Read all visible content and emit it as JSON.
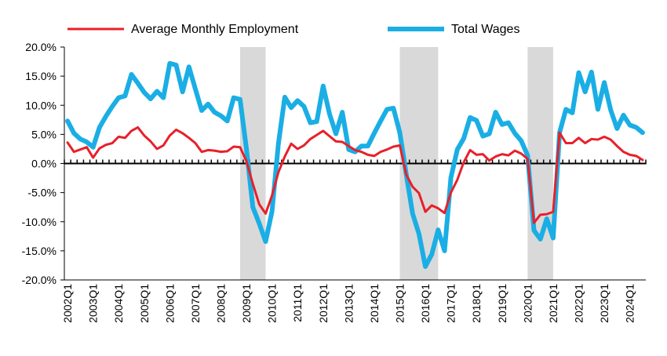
{
  "chart_data": {
    "type": "line",
    "title": "",
    "xlabel": "",
    "ylabel": "",
    "ylim": [
      -20,
      20
    ],
    "yticks": [
      20,
      15,
      10,
      5,
      0,
      -5,
      -10,
      -15,
      -20
    ],
    "ytick_labels": [
      "20.0%",
      "15.0%",
      "10.0%",
      "5.0%",
      "0.0%",
      "-5.0%",
      "-10.0%",
      "-15.0%",
      "-20.0%"
    ],
    "x_start": "2002Q1",
    "x_labels": [
      "2002Q1",
      "2003Q1",
      "2004Q1",
      "2005Q1",
      "2006Q1",
      "2007Q1",
      "2008Q1",
      "2009Q1",
      "2010Q1",
      "2011Q1",
      "2012Q1",
      "2013Q1",
      "2014Q1",
      "2015Q1",
      "2016Q1",
      "2017Q1",
      "2018Q1",
      "2019Q1",
      "2020Q1",
      "2021Q1",
      "2022Q1",
      "2023Q1",
      "2024Q1"
    ],
    "legend_position": "top",
    "recessions": [
      [
        "2008Q4",
        "2009Q4"
      ],
      [
        "2015Q1",
        "2016Q3"
      ],
      [
        "2020Q1",
        "2021Q1"
      ]
    ],
    "series": [
      {
        "name": "Average Monthly Employment",
        "color": "#e8202a",
        "values": [
          3.6,
          2.0,
          2.4,
          2.8,
          1.0,
          2.6,
          3.2,
          3.5,
          4.6,
          4.4,
          5.6,
          6.2,
          4.8,
          3.8,
          2.5,
          3.1,
          4.8,
          5.8,
          5.2,
          4.4,
          3.5,
          2.0,
          2.3,
          2.2,
          2.0,
          2.1,
          2.9,
          2.8,
          0.4,
          -3.5,
          -7.0,
          -8.6,
          -5.5,
          -1.5,
          1.2,
          3.4,
          2.5,
          3.1,
          4.2,
          4.9,
          5.6,
          4.7,
          3.8,
          3.7,
          3.0,
          2.3,
          2.0,
          1.5,
          1.3,
          2.0,
          2.4,
          2.9,
          3.1,
          -1.9,
          -4.0,
          -5.1,
          -8.3,
          -7.2,
          -7.7,
          -8.5,
          -5.0,
          -2.8,
          0.2,
          2.3,
          1.5,
          1.6,
          0.5,
          1.2,
          1.6,
          1.4,
          2.2,
          1.7,
          0.8,
          -10.2,
          -8.8,
          -8.7,
          -8.3,
          5.3,
          3.5,
          3.5,
          4.4,
          3.5,
          4.2,
          4.1,
          4.6,
          4.1,
          3.0,
          2.0,
          1.5,
          1.3,
          0.6
        ]
      },
      {
        "name": "Total Wages",
        "color": "#1aaee5",
        "values": [
          7.3,
          5.2,
          4.2,
          3.7,
          2.8,
          6.2,
          8.1,
          9.8,
          11.3,
          11.6,
          15.3,
          13.8,
          12.2,
          11.1,
          12.4,
          11.3,
          17.2,
          16.9,
          12.3,
          16.6,
          12.8,
          9.1,
          10.2,
          8.8,
          8.2,
          7.3,
          11.3,
          11.0,
          2.5,
          -7.5,
          -10.3,
          -13.4,
          -8.2,
          3.4,
          11.4,
          9.6,
          10.8,
          9.8,
          7.0,
          7.2,
          13.3,
          8.5,
          5.1,
          8.8,
          2.4,
          2.0,
          3.0,
          3.0,
          5.2,
          7.3,
          9.3,
          9.5,
          5.3,
          -1.8,
          -8.6,
          -12.1,
          -17.7,
          -15.6,
          -11.4,
          -15.0,
          -2.4,
          2.4,
          4.3,
          7.9,
          7.4,
          4.7,
          5.1,
          8.8,
          6.7,
          7.0,
          5.2,
          3.9,
          1.4,
          -11.5,
          -13.0,
          -9.5,
          -12.8,
          5.3,
          9.3,
          8.7,
          15.6,
          12.3,
          15.7,
          9.3,
          13.9,
          9.2,
          6.0,
          8.3,
          6.6,
          6.2,
          5.3
        ]
      }
    ]
  }
}
